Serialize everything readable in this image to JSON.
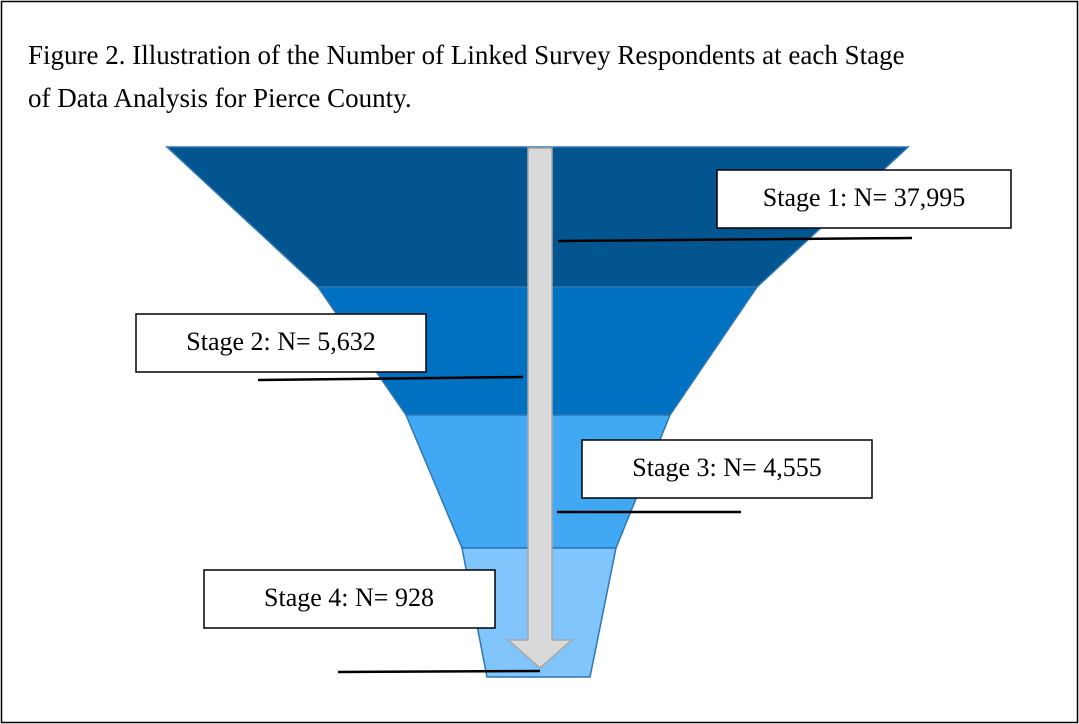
{
  "title_lines": [
    "Figure 2. Illustration of the Number of Linked Survey Respondents at each Stage",
    "of Data Analysis for Pierce County."
  ],
  "stages": [
    {
      "label": "Stage 1: N= 37,995"
    },
    {
      "label": "Stage 2: N= 5,632"
    },
    {
      "label": "Stage 3: N= 4,555"
    },
    {
      "label": "Stage 4: N= 928"
    }
  ]
}
